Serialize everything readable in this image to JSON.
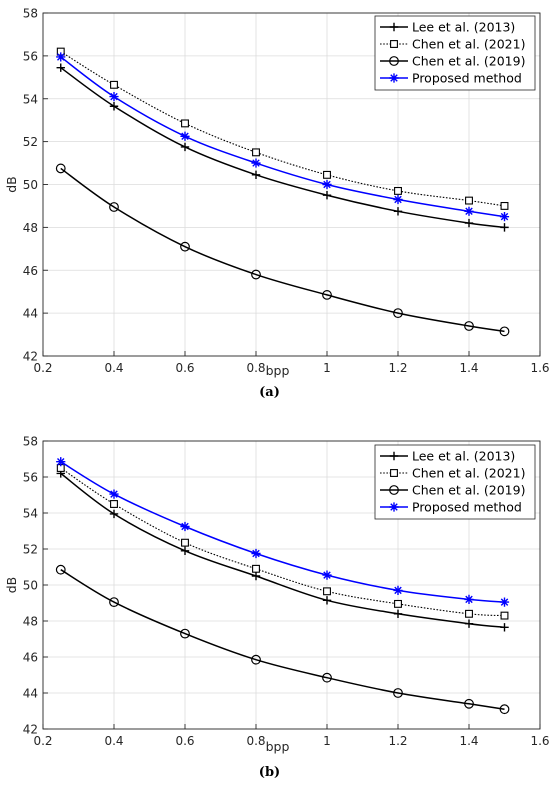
{
  "chart_data": [
    {
      "type": "line",
      "panel": "(a)",
      "xlabel": "bpp",
      "ylabel": "dB",
      "xlim": [
        0.2,
        1.6
      ],
      "ylim": [
        42,
        58
      ],
      "xticks": [
        0.2,
        0.4,
        0.6,
        0.8,
        1,
        1.2,
        1.4,
        1.6
      ],
      "yticks": [
        42,
        44,
        46,
        48,
        50,
        52,
        54,
        56,
        58
      ],
      "grid": true,
      "legend_position": "top-right",
      "x": [
        0.25,
        0.4,
        0.6,
        0.8,
        1.0,
        1.2,
        1.4,
        1.5
      ],
      "series": [
        {
          "name": "Lee et al. (2013)",
          "marker": "plus",
          "line": "solid",
          "color": "#000000",
          "values": [
            55.45,
            53.65,
            51.75,
            50.45,
            49.5,
            48.75,
            48.2,
            48.0
          ]
        },
        {
          "name": "Chen et al. (2021)",
          "marker": "square",
          "line": "dotted",
          "color": "#000000",
          "values": [
            56.2,
            54.65,
            52.85,
            51.5,
            50.45,
            49.7,
            49.25,
            49.0
          ]
        },
        {
          "name": "Chen et al. (2019)",
          "marker": "circle",
          "line": "solid",
          "color": "#000000",
          "values": [
            50.75,
            48.95,
            47.1,
            45.8,
            44.85,
            44.0,
            43.4,
            43.15
          ]
        },
        {
          "name": "Proposed method",
          "marker": "star",
          "line": "solid",
          "color": "#0000ff",
          "values": [
            55.95,
            54.1,
            52.25,
            51.0,
            50.0,
            49.3,
            48.75,
            48.5
          ]
        }
      ]
    },
    {
      "type": "line",
      "panel": "(b)",
      "xlabel": "bpp",
      "ylabel": "dB",
      "xlim": [
        0.2,
        1.6
      ],
      "ylim": [
        42,
        58
      ],
      "xticks": [
        0.2,
        0.4,
        0.6,
        0.8,
        1,
        1.2,
        1.4,
        1.6
      ],
      "yticks": [
        42,
        44,
        46,
        48,
        50,
        52,
        54,
        56,
        58
      ],
      "grid": true,
      "legend_position": "top-right",
      "x": [
        0.25,
        0.4,
        0.6,
        0.8,
        1.0,
        1.2,
        1.4,
        1.5
      ],
      "series": [
        {
          "name": "Lee et al. (2013)",
          "marker": "plus",
          "line": "solid",
          "color": "#000000",
          "values": [
            56.2,
            53.95,
            51.9,
            50.5,
            49.15,
            48.4,
            47.85,
            47.65
          ]
        },
        {
          "name": "Chen et al. (2021)",
          "marker": "square",
          "line": "dotted",
          "color": "#000000",
          "values": [
            56.5,
            54.5,
            52.35,
            50.9,
            49.65,
            48.95,
            48.4,
            48.3
          ]
        },
        {
          "name": "Chen et al. (2019)",
          "marker": "circle",
          "line": "solid",
          "color": "#000000",
          "values": [
            50.85,
            49.05,
            47.3,
            45.85,
            44.85,
            44.0,
            43.4,
            43.1
          ]
        },
        {
          "name": "Proposed method",
          "marker": "star",
          "line": "solid",
          "color": "#0000ff",
          "values": [
            56.85,
            55.05,
            53.25,
            51.75,
            50.55,
            49.7,
            49.2,
            49.05
          ]
        }
      ]
    }
  ]
}
